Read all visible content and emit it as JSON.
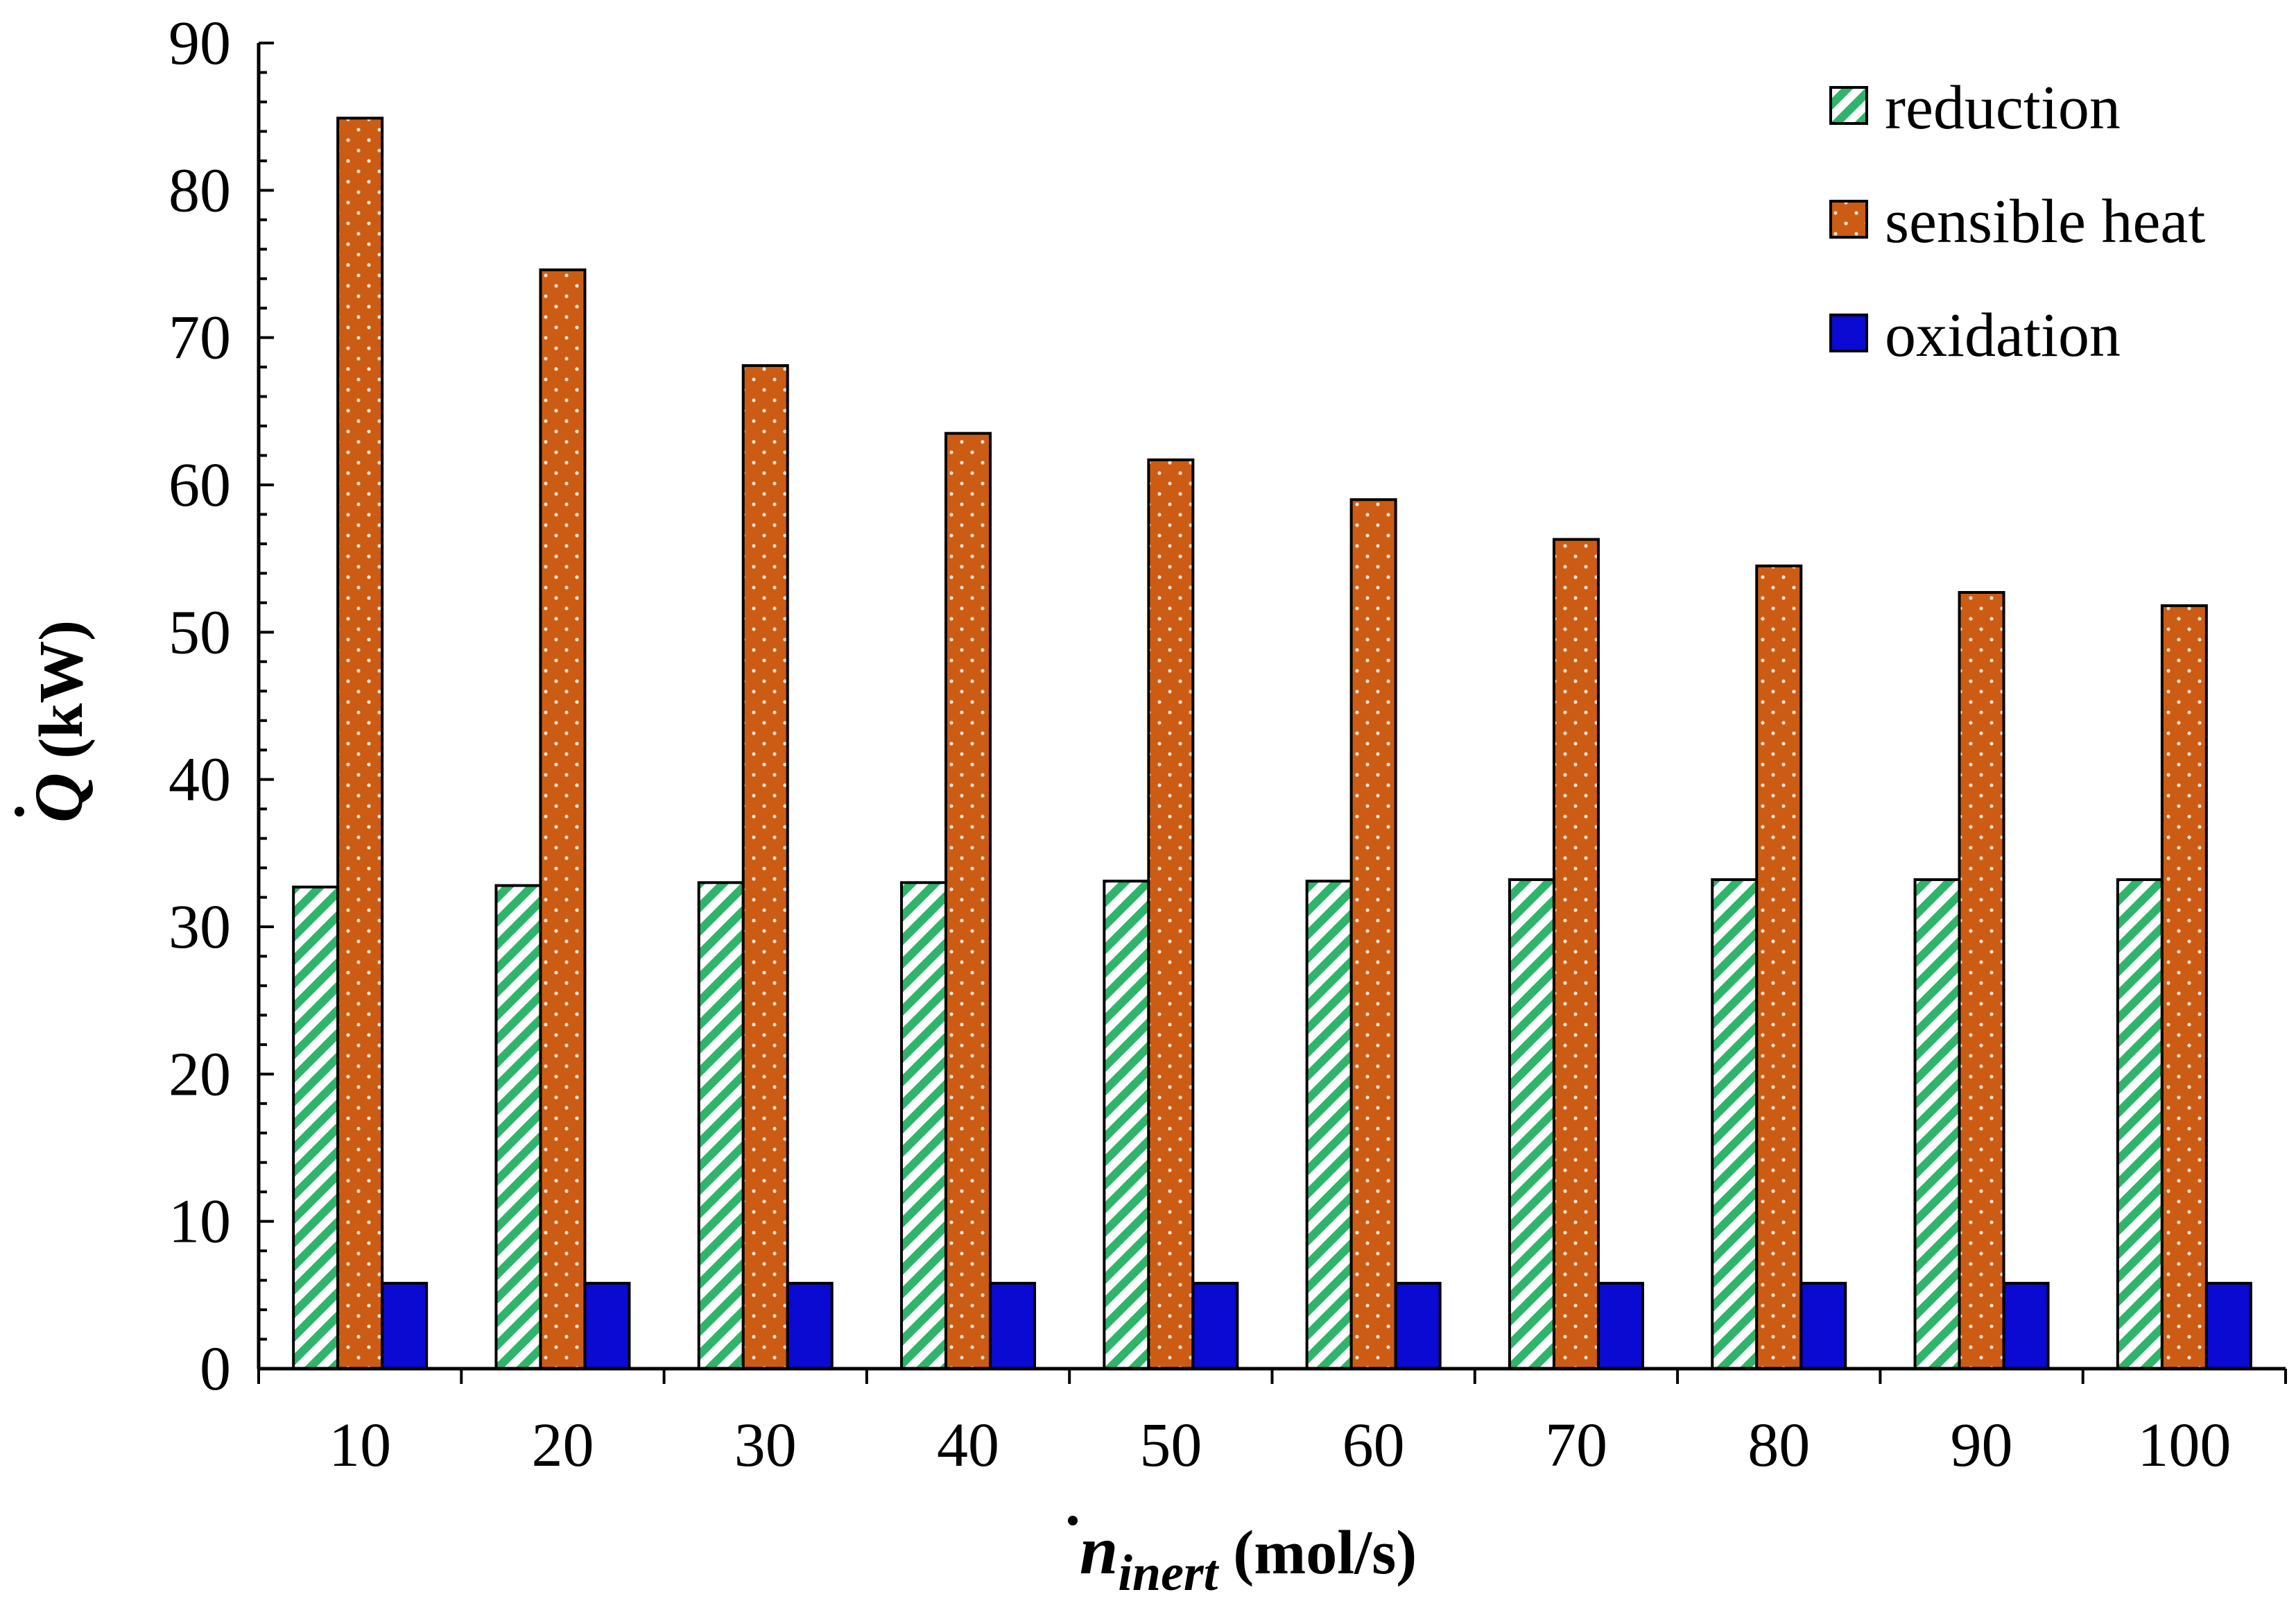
{
  "chart_data": {
    "type": "bar",
    "title": "",
    "xlabel_symbol": "n",
    "xlabel_subscript": "inert",
    "xlabel_units": "(mol/s)",
    "ylabel_symbol": "Q",
    "ylabel_units": "(kW)",
    "ylim": [
      0,
      90
    ],
    "y_ticks": [
      "0",
      "10",
      "20",
      "30",
      "40",
      "50",
      "60",
      "70",
      "80",
      "90"
    ],
    "categories": [
      "10",
      "20",
      "30",
      "40",
      "50",
      "60",
      "70",
      "80",
      "90",
      "100"
    ],
    "series": [
      {
        "name": "reduction",
        "pattern": "diagonal-stripes",
        "color": "#2fb56b",
        "values": [
          32.7,
          32.8,
          33.0,
          33.0,
          33.1,
          33.1,
          33.2,
          33.2,
          33.2,
          33.2
        ]
      },
      {
        "name": "sensible heat",
        "pattern": "dotted",
        "color": "#cc5c14",
        "values": [
          84.9,
          74.6,
          68.1,
          63.5,
          61.7,
          59.0,
          56.3,
          54.5,
          52.7,
          51.8
        ]
      },
      {
        "name": "oxidation",
        "pattern": "solid",
        "color": "#0a0ad2",
        "values": [
          5.8,
          5.8,
          5.8,
          5.8,
          5.8,
          5.8,
          5.8,
          5.8,
          5.8,
          5.8
        ]
      }
    ],
    "legend_position": "top-right",
    "grid": false
  }
}
